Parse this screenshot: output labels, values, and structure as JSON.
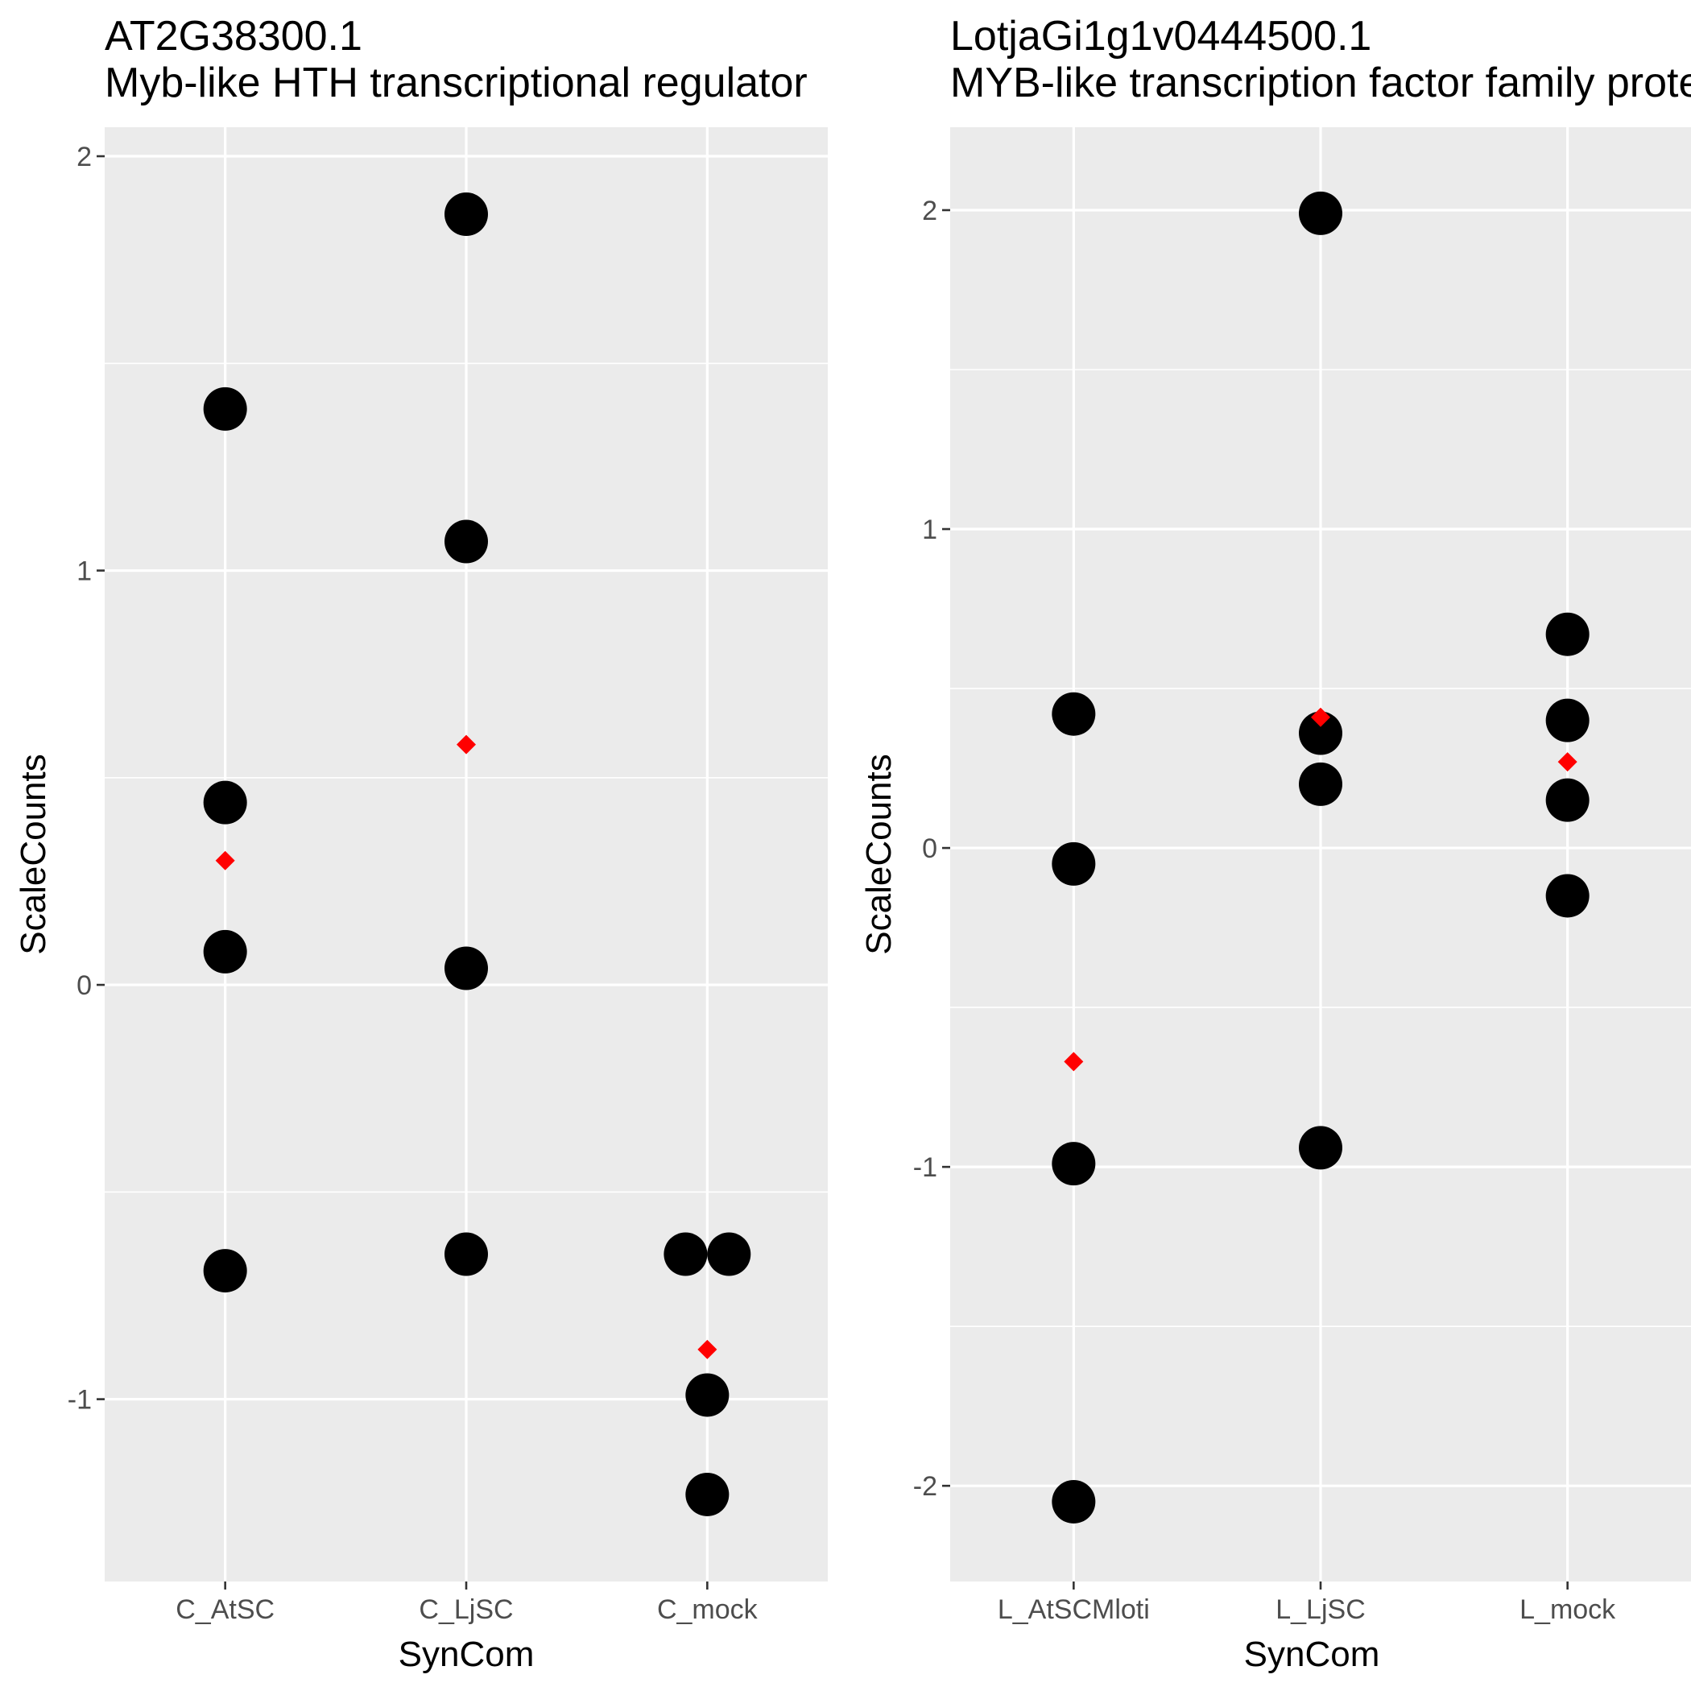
{
  "chart_data": [
    {
      "type": "scatter",
      "title": "AT2G38300.1",
      "subtitle": "Myb-like HTH transcriptional regulator",
      "xlabel": "SynCom",
      "ylabel": "ScaleCounts",
      "categories": [
        "C_AtSC",
        "C_LjSC",
        "C_mock"
      ],
      "ylim": [
        -1.44,
        2.07
      ],
      "yticks": [
        -1,
        0,
        1,
        2
      ],
      "grid": true,
      "point_color": "#000000",
      "mean_color": "#ff0000",
      "background_color": "#ebebeb",
      "points": [
        {
          "category": "C_AtSC",
          "y": 1.39
        },
        {
          "category": "C_AtSC",
          "y": 0.44
        },
        {
          "category": "C_AtSC",
          "y": 0.08
        },
        {
          "category": "C_AtSC",
          "y": -0.69
        },
        {
          "category": "C_LjSC",
          "y": 1.86
        },
        {
          "category": "C_LjSC",
          "y": 1.07
        },
        {
          "category": "C_LjSC",
          "y": 0.04
        },
        {
          "category": "C_LjSC",
          "y": -0.65
        },
        {
          "category": "C_mock",
          "y": -0.65,
          "dx": -0.09
        },
        {
          "category": "C_mock",
          "y": -0.65,
          "dx": 0.09
        },
        {
          "category": "C_mock",
          "y": -0.99
        },
        {
          "category": "C_mock",
          "y": -1.23
        }
      ],
      "means": [
        {
          "category": "C_AtSC",
          "y": 0.3
        },
        {
          "category": "C_LjSC",
          "y": 0.58
        },
        {
          "category": "C_mock",
          "y": -0.88
        }
      ]
    },
    {
      "type": "scatter",
      "title": "LotjaGi1g1v0444500.1",
      "subtitle": "MYB-like transcription factor family protein",
      "xlabel": "SynCom",
      "ylabel": "ScaleCounts",
      "categories": [
        "L_AtSCMloti",
        "L_LjSC",
        "L_mock"
      ],
      "ylim": [
        -2.3,
        2.26
      ],
      "yticks": [
        -2,
        -1,
        0,
        1,
        2
      ],
      "grid": true,
      "point_color": "#000000",
      "mean_color": "#ff0000",
      "background_color": "#ebebeb",
      "points": [
        {
          "category": "L_AtSCMloti",
          "y": 0.42
        },
        {
          "category": "L_AtSCMloti",
          "y": -0.05
        },
        {
          "category": "L_AtSCMloti",
          "y": -0.99
        },
        {
          "category": "L_AtSCMloti",
          "y": -2.05
        },
        {
          "category": "L_LjSC",
          "y": 1.99
        },
        {
          "category": "L_LjSC",
          "y": 0.36
        },
        {
          "category": "L_LjSC",
          "y": 0.2
        },
        {
          "category": "L_LjSC",
          "y": -0.94
        },
        {
          "category": "L_mock",
          "y": 0.67
        },
        {
          "category": "L_mock",
          "y": 0.4
        },
        {
          "category": "L_mock",
          "y": 0.15
        },
        {
          "category": "L_mock",
          "y": -0.15
        }
      ],
      "means": [
        {
          "category": "L_AtSCMloti",
          "y": -0.67
        },
        {
          "category": "L_LjSC",
          "y": 0.41
        },
        {
          "category": "L_mock",
          "y": 0.27
        }
      ]
    }
  ]
}
